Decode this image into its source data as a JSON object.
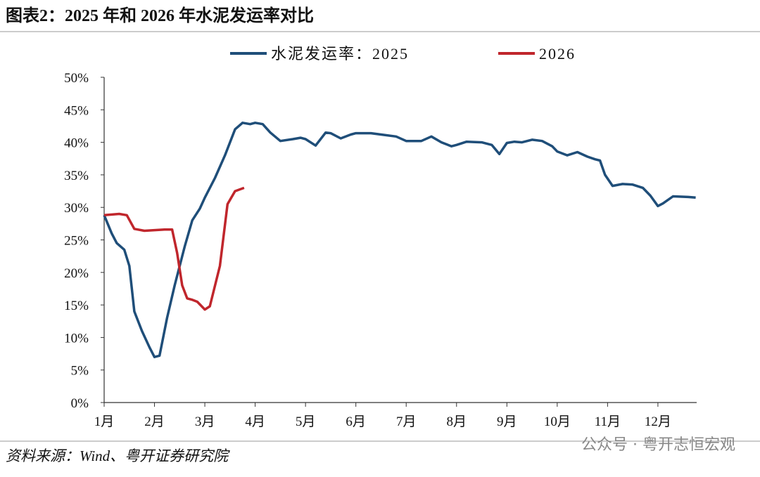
{
  "chart_data": {
    "type": "line",
    "title": "图表2：2025 年和 2026 年水泥发运率对比",
    "source": "资料来源：Wind、粤开证券研究院",
    "watermark": "公众号 · 粤开志恒宏观",
    "xlim": [
      1,
      12.77
    ],
    "xticks": [
      {
        "value": 1,
        "label": "1月"
      },
      {
        "value": 2,
        "label": "2月"
      },
      {
        "value": 3,
        "label": "3月"
      },
      {
        "value": 4,
        "label": "4月"
      },
      {
        "value": 5,
        "label": "5月"
      },
      {
        "value": 6,
        "label": "6月"
      },
      {
        "value": 7,
        "label": "7月"
      },
      {
        "value": 8,
        "label": "8月"
      },
      {
        "value": 9,
        "label": "9月"
      },
      {
        "value": 10,
        "label": "10月"
      },
      {
        "value": 11,
        "label": "11月"
      },
      {
        "value": 12,
        "label": "12月"
      }
    ],
    "ylim": [
      0,
      50
    ],
    "yticks": [
      {
        "value": 0,
        "label": "0%"
      },
      {
        "value": 5,
        "label": "5%"
      },
      {
        "value": 10,
        "label": "10%"
      },
      {
        "value": 15,
        "label": "15%"
      },
      {
        "value": 20,
        "label": "20%"
      },
      {
        "value": 25,
        "label": "25%"
      },
      {
        "value": 30,
        "label": "30%"
      },
      {
        "value": 35,
        "label": "35%"
      },
      {
        "value": 40,
        "label": "40%"
      },
      {
        "value": 45,
        "label": "45%"
      },
      {
        "value": 50,
        "label": "50%"
      }
    ],
    "grid": false,
    "legend": "top",
    "series": [
      {
        "name": "水泥发运率：2025",
        "color": "#1f4e79",
        "x": [
          1.0,
          1.15,
          1.25,
          1.4,
          1.5,
          1.6,
          1.75,
          1.9,
          2.0,
          2.1,
          2.25,
          2.4,
          2.6,
          2.75,
          2.9,
          3.0,
          3.2,
          3.4,
          3.6,
          3.75,
          3.9,
          4.0,
          4.15,
          4.3,
          4.5,
          4.75,
          4.9,
          5.0,
          5.2,
          5.4,
          5.5,
          5.7,
          5.9,
          6.0,
          6.3,
          6.5,
          6.8,
          7.0,
          7.3,
          7.5,
          7.7,
          7.9,
          8.0,
          8.2,
          8.5,
          8.7,
          8.85,
          9.0,
          9.15,
          9.3,
          9.5,
          9.7,
          9.9,
          10.0,
          10.2,
          10.4,
          10.6,
          10.75,
          10.85,
          10.95,
          11.1,
          11.3,
          11.5,
          11.7,
          11.85,
          12.0,
          12.1,
          12.3,
          12.6,
          12.75
        ],
        "values": [
          28.8,
          26,
          24.5,
          23.5,
          21,
          14,
          11,
          8.5,
          7,
          7.2,
          13,
          18,
          24,
          28,
          29.8,
          31.5,
          34.5,
          38,
          42,
          43,
          42.8,
          43,
          42.8,
          41.5,
          40.2,
          40.5,
          40.7,
          40.5,
          39.5,
          41.5,
          41.4,
          40.6,
          41.2,
          41.4,
          41.4,
          41.2,
          40.9,
          40.2,
          40.2,
          40.9,
          40,
          39.4,
          39.6,
          40.1,
          40,
          39.6,
          38.2,
          39.9,
          40.1,
          40,
          40.4,
          40.2,
          39.4,
          38.6,
          38,
          38.5,
          37.8,
          37.4,
          37.2,
          35,
          33.3,
          33.6,
          33.5,
          33,
          31.8,
          30.2,
          30.6,
          31.7,
          31.6,
          31.5
        ]
      },
      {
        "name": "2026",
        "color": "#c0262c",
        "x": [
          1.0,
          1.3,
          1.45,
          1.6,
          1.8,
          2.0,
          2.2,
          2.35,
          2.45,
          2.55,
          2.65,
          2.75,
          2.85,
          3.0,
          3.1,
          3.3,
          3.45,
          3.6,
          3.78
        ],
        "values": [
          28.8,
          29,
          28.8,
          26.7,
          26.4,
          26.5,
          26.6,
          26.6,
          23,
          18,
          16,
          15.8,
          15.5,
          14.3,
          14.8,
          21,
          30.5,
          32.5,
          33
        ]
      }
    ]
  }
}
